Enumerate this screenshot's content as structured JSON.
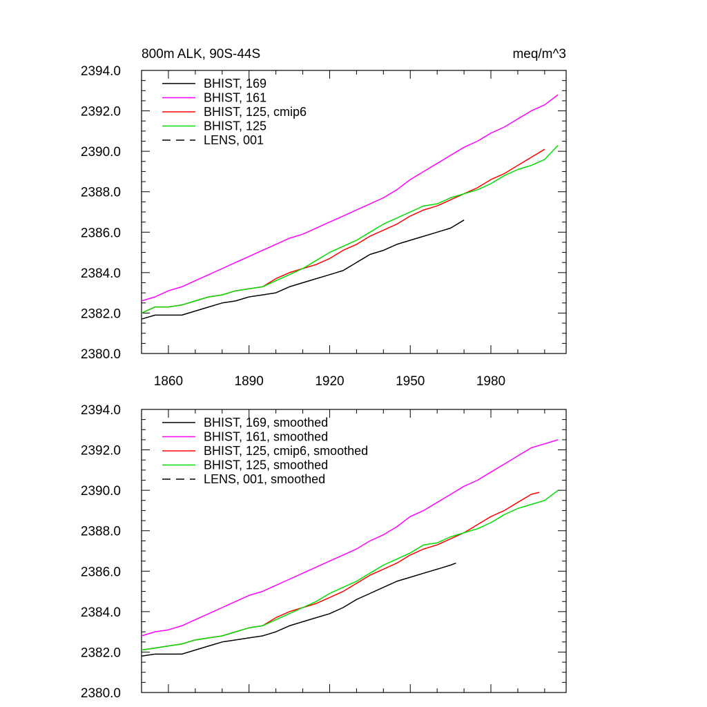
{
  "chart_data": [
    {
      "type": "line",
      "title_left": "800m ALK, 90S-44S",
      "title_right": "meq/m^3",
      "xlabel": "",
      "ylabel": "",
      "xlim": [
        1850,
        2008
      ],
      "ylim": [
        2380,
        2394
      ],
      "xticks": [
        1860,
        1890,
        1920,
        1950,
        1980
      ],
      "xtick_labels": [
        "1860",
        "1890",
        "1920",
        "1950",
        "1980"
      ],
      "show_xtick_labels": true,
      "yticks": [
        2380,
        2382,
        2384,
        2386,
        2388,
        2390,
        2392,
        2394
      ],
      "ytick_labels": [
        "2380.0",
        "2382.0",
        "2384.0",
        "2386.0",
        "2388.0",
        "2390.0",
        "2392.0",
        "2394.0"
      ],
      "legend_position": "top-left",
      "series": [
        {
          "name": "BHIST, 169",
          "color": "#000000",
          "dash": "solid",
          "x": [
            1850,
            1855,
            1860,
            1865,
            1870,
            1875,
            1880,
            1885,
            1890,
            1895,
            1900,
            1905,
            1910,
            1915,
            1920,
            1925,
            1930,
            1935,
            1940,
            1945,
            1950,
            1955,
            1960,
            1965,
            1970
          ],
          "values": [
            2381.7,
            2381.9,
            2381.9,
            2381.9,
            2382.1,
            2382.3,
            2382.5,
            2382.6,
            2382.8,
            2382.9,
            2383.0,
            2383.3,
            2383.5,
            2383.7,
            2383.9,
            2384.1,
            2384.5,
            2384.9,
            2385.1,
            2385.4,
            2385.6,
            2385.8,
            2386.0,
            2386.2,
            2386.6
          ]
        },
        {
          "name": "BHIST, 161",
          "color": "#ff00ff",
          "dash": "solid",
          "x": [
            1850,
            1855,
            1860,
            1865,
            1870,
            1875,
            1880,
            1885,
            1890,
            1895,
            1900,
            1905,
            1910,
            1915,
            1920,
            1925,
            1930,
            1935,
            1940,
            1945,
            1950,
            1955,
            1960,
            1965,
            1970,
            1975,
            1980,
            1985,
            1990,
            1995,
            2000,
            2005
          ],
          "values": [
            2382.6,
            2382.8,
            2383.1,
            2383.3,
            2383.6,
            2383.9,
            2384.2,
            2384.5,
            2384.8,
            2385.1,
            2385.4,
            2385.7,
            2385.9,
            2386.2,
            2386.5,
            2386.8,
            2387.1,
            2387.4,
            2387.7,
            2388.1,
            2388.6,
            2389.0,
            2389.4,
            2389.8,
            2390.2,
            2390.5,
            2390.9,
            2391.2,
            2391.6,
            2392.0,
            2392.3,
            2392.8
          ]
        },
        {
          "name": "BHIST, 125, cmip6",
          "color": "#ff0000",
          "dash": "solid",
          "x": [
            1850,
            1855,
            1860,
            1865,
            1870,
            1875,
            1880,
            1885,
            1890,
            1895,
            1900,
            1905,
            1910,
            1915,
            1920,
            1925,
            1930,
            1935,
            1940,
            1945,
            1950,
            1955,
            1960,
            1965,
            1970,
            1975,
            1980,
            1985,
            1990,
            1995,
            2000
          ],
          "values": [
            2382.0,
            2382.3,
            2382.3,
            2382.4,
            2382.6,
            2382.8,
            2382.9,
            2383.1,
            2383.2,
            2383.3,
            2383.7,
            2384.0,
            2384.2,
            2384.4,
            2384.7,
            2385.1,
            2385.4,
            2385.8,
            2386.1,
            2386.4,
            2386.8,
            2387.1,
            2387.3,
            2387.6,
            2387.9,
            2388.2,
            2388.6,
            2388.9,
            2389.3,
            2389.7,
            2390.1
          ]
        },
        {
          "name": "BHIST, 125",
          "color": "#00dd00",
          "dash": "solid",
          "x": [
            1850,
            1855,
            1860,
            1865,
            1870,
            1875,
            1880,
            1885,
            1890,
            1895,
            1900,
            1905,
            1910,
            1915,
            1920,
            1925,
            1930,
            1935,
            1940,
            1945,
            1950,
            1955,
            1960,
            1965,
            1970,
            1975,
            1980,
            1985,
            1990,
            1995,
            2000,
            2005
          ],
          "values": [
            2382.0,
            2382.3,
            2382.3,
            2382.4,
            2382.6,
            2382.8,
            2382.9,
            2383.1,
            2383.2,
            2383.3,
            2383.6,
            2383.9,
            2384.2,
            2384.6,
            2385.0,
            2385.3,
            2385.6,
            2386.0,
            2386.4,
            2386.7,
            2387.0,
            2387.3,
            2387.4,
            2387.7,
            2387.9,
            2388.1,
            2388.4,
            2388.8,
            2389.1,
            2389.3,
            2389.6,
            2390.3
          ]
        },
        {
          "name": "LENS, 001",
          "color": "#000000",
          "dash": "dashed",
          "x": [],
          "values": []
        }
      ]
    },
    {
      "type": "line",
      "xlabel": "",
      "ylabel": "",
      "xlim": [
        1850,
        2008
      ],
      "ylim": [
        2380,
        2394
      ],
      "xticks": [
        1860,
        1890,
        1920,
        1950,
        1980
      ],
      "show_xtick_labels": false,
      "yticks": [
        2380,
        2382,
        2384,
        2386,
        2388,
        2390,
        2392,
        2394
      ],
      "ytick_labels": [
        "2380.0",
        "2382.0",
        "2384.0",
        "2386.0",
        "2388.0",
        "2390.0",
        "2392.0",
        "2394.0"
      ],
      "legend_position": "top-left",
      "series": [
        {
          "name": "BHIST, 169, smoothed",
          "color": "#000000",
          "dash": "solid",
          "x": [
            1850,
            1855,
            1860,
            1865,
            1870,
            1875,
            1880,
            1885,
            1890,
            1895,
            1900,
            1905,
            1910,
            1915,
            1920,
            1925,
            1930,
            1935,
            1940,
            1945,
            1950,
            1955,
            1960,
            1965,
            1967
          ],
          "values": [
            2381.8,
            2381.9,
            2381.9,
            2381.9,
            2382.1,
            2382.3,
            2382.5,
            2382.6,
            2382.7,
            2382.8,
            2383.0,
            2383.3,
            2383.5,
            2383.7,
            2383.9,
            2384.2,
            2384.6,
            2384.9,
            2385.2,
            2385.5,
            2385.7,
            2385.9,
            2386.1,
            2386.3,
            2386.4
          ]
        },
        {
          "name": "BHIST, 161, smoothed",
          "color": "#ff00ff",
          "dash": "solid",
          "x": [
            1850,
            1855,
            1860,
            1865,
            1870,
            1875,
            1880,
            1885,
            1890,
            1895,
            1900,
            1905,
            1910,
            1915,
            1920,
            1925,
            1930,
            1935,
            1940,
            1945,
            1950,
            1955,
            1960,
            1965,
            1970,
            1975,
            1980,
            1985,
            1990,
            1995,
            2000,
            2005
          ],
          "values": [
            2382.8,
            2383.0,
            2383.1,
            2383.3,
            2383.6,
            2383.9,
            2384.2,
            2384.5,
            2384.8,
            2385.0,
            2385.3,
            2385.6,
            2385.9,
            2386.2,
            2386.5,
            2386.8,
            2387.1,
            2387.5,
            2387.8,
            2388.2,
            2388.7,
            2389.0,
            2389.4,
            2389.8,
            2390.2,
            2390.5,
            2390.9,
            2391.3,
            2391.7,
            2392.1,
            2392.3,
            2392.5
          ]
        },
        {
          "name": "BHIST, 125, cmip6, smoothed",
          "color": "#ff0000",
          "dash": "solid",
          "x": [
            1850,
            1855,
            1860,
            1865,
            1870,
            1875,
            1880,
            1885,
            1890,
            1895,
            1900,
            1905,
            1910,
            1915,
            1920,
            1925,
            1930,
            1935,
            1940,
            1945,
            1950,
            1955,
            1960,
            1965,
            1970,
            1975,
            1980,
            1985,
            1990,
            1995,
            1998
          ],
          "values": [
            2382.1,
            2382.2,
            2382.3,
            2382.4,
            2382.6,
            2382.7,
            2382.8,
            2383.0,
            2383.2,
            2383.3,
            2383.7,
            2384.0,
            2384.2,
            2384.4,
            2384.7,
            2385.0,
            2385.4,
            2385.8,
            2386.1,
            2386.4,
            2386.8,
            2387.1,
            2387.3,
            2387.6,
            2387.9,
            2388.3,
            2388.7,
            2389.0,
            2389.4,
            2389.8,
            2389.9
          ]
        },
        {
          "name": "BHIST, 125, smoothed",
          "color": "#00dd00",
          "dash": "solid",
          "x": [
            1850,
            1855,
            1860,
            1865,
            1870,
            1875,
            1880,
            1885,
            1890,
            1895,
            1900,
            1905,
            1910,
            1915,
            1920,
            1925,
            1930,
            1935,
            1940,
            1945,
            1950,
            1955,
            1960,
            1965,
            1970,
            1975,
            1980,
            1985,
            1990,
            1995,
            2000,
            2005
          ],
          "values": [
            2382.1,
            2382.2,
            2382.3,
            2382.4,
            2382.6,
            2382.7,
            2382.8,
            2383.0,
            2383.2,
            2383.3,
            2383.6,
            2383.9,
            2384.2,
            2384.5,
            2384.9,
            2385.2,
            2385.5,
            2385.9,
            2386.3,
            2386.6,
            2386.9,
            2387.3,
            2387.4,
            2387.7,
            2387.9,
            2388.1,
            2388.4,
            2388.8,
            2389.1,
            2389.3,
            2389.5,
            2390.0
          ]
        },
        {
          "name": "LENS, 001, smoothed",
          "color": "#000000",
          "dash": "dashed",
          "x": [],
          "values": []
        }
      ]
    }
  ]
}
